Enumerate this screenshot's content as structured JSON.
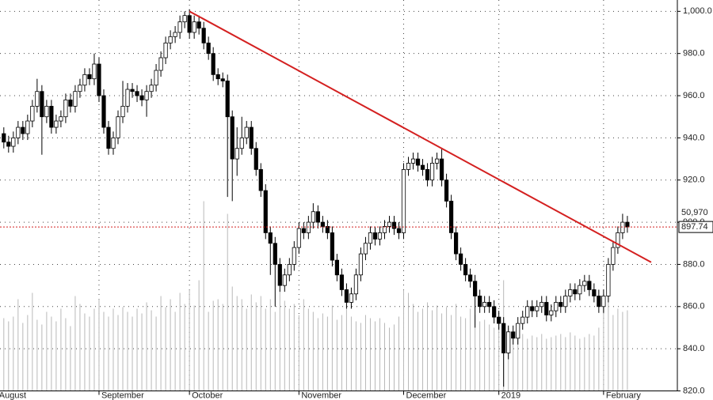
{
  "chart_data": {
    "type": "candlestick",
    "open": [
      942,
      938,
      936,
      940,
      945,
      942,
      948,
      955,
      962,
      950,
      955,
      945,
      948,
      950,
      958,
      955,
      962,
      965,
      970,
      968,
      975,
      960,
      945,
      935,
      940,
      950,
      955,
      963,
      962,
      960,
      958,
      962,
      965,
      972,
      978,
      985,
      988,
      990,
      995,
      998,
      990,
      995,
      992,
      985,
      980,
      970,
      968,
      967,
      950,
      930,
      935,
      940,
      945,
      935,
      925,
      915,
      895,
      890,
      880,
      870,
      875,
      880,
      888,
      897,
      895,
      900,
      905,
      900,
      898,
      895,
      882,
      875,
      868,
      862,
      866,
      875,
      885,
      890,
      895,
      892,
      895,
      898,
      900,
      897,
      895,
      925,
      928,
      930,
      927,
      925,
      920,
      928,
      930,
      920,
      910,
      895,
      885,
      880,
      875,
      872,
      865,
      860,
      862,
      860,
      855,
      852,
      838,
      848,
      845,
      852,
      855,
      860,
      858,
      860,
      862,
      856,
      858,
      862,
      860,
      865,
      868,
      866,
      870,
      872,
      868,
      865,
      860,
      865,
      880,
      888,
      895,
      900
    ],
    "high": [
      945,
      941,
      943,
      948,
      948,
      951,
      958,
      968,
      965,
      958,
      958,
      951,
      953,
      961,
      961,
      965,
      968,
      973,
      973,
      980,
      978,
      963,
      948,
      943,
      953,
      967,
      966,
      966,
      965,
      963,
      965,
      968,
      975,
      981,
      988,
      991,
      993,
      998,
      1000,
      1001,
      998,
      998,
      995,
      988,
      983,
      973,
      971,
      970,
      953,
      945,
      950,
      948,
      948,
      938,
      928,
      918,
      898,
      893,
      883,
      878,
      883,
      891,
      900,
      900,
      903,
      909,
      908,
      903,
      901,
      898,
      885,
      878,
      871,
      869,
      878,
      888,
      893,
      898,
      898,
      898,
      901,
      903,
      903,
      900,
      928,
      931,
      933,
      933,
      930,
      928,
      931,
      933,
      935,
      923,
      913,
      898,
      888,
      883,
      878,
      875,
      868,
      865,
      865,
      863,
      858,
      855,
      851,
      851,
      855,
      858,
      863,
      863,
      863,
      865,
      865,
      861,
      865,
      865,
      868,
      871,
      871,
      873,
      875,
      875,
      871,
      868,
      868,
      883,
      891,
      898,
      904,
      903
    ],
    "low": [
      935,
      933,
      933,
      937,
      939,
      939,
      945,
      952,
      932,
      947,
      942,
      942,
      945,
      947,
      952,
      952,
      959,
      962,
      965,
      965,
      957,
      942,
      932,
      932,
      937,
      947,
      952,
      959,
      957,
      955,
      950,
      959,
      962,
      969,
      975,
      982,
      985,
      987,
      992,
      987,
      987,
      989,
      982,
      977,
      967,
      965,
      964,
      912,
      910,
      922,
      932,
      937,
      932,
      922,
      912,
      892,
      875,
      860,
      867,
      867,
      872,
      877,
      885,
      892,
      892,
      897,
      897,
      895,
      892,
      879,
      872,
      865,
      859,
      859,
      863,
      872,
      882,
      887,
      889,
      889,
      892,
      895,
      894,
      892,
      892,
      922,
      925,
      924,
      922,
      917,
      917,
      925,
      917,
      907,
      892,
      882,
      877,
      872,
      869,
      850,
      857,
      857,
      857,
      852,
      849,
      822,
      835,
      842,
      842,
      849,
      852,
      855,
      855,
      857,
      853,
      853,
      855,
      857,
      857,
      862,
      863,
      863,
      867,
      865,
      862,
      857,
      857,
      862,
      877,
      885,
      892,
      895
    ],
    "close": [
      938,
      936,
      940,
      945,
      942,
      948,
      955,
      962,
      950,
      955,
      945,
      948,
      950,
      958,
      955,
      962,
      965,
      970,
      968,
      975,
      960,
      945,
      935,
      940,
      950,
      955,
      963,
      962,
      960,
      958,
      962,
      965,
      972,
      978,
      985,
      988,
      990,
      995,
      998,
      990,
      995,
      992,
      985,
      980,
      970,
      968,
      967,
      950,
      930,
      935,
      940,
      945,
      935,
      925,
      915,
      895,
      890,
      880,
      870,
      875,
      880,
      888,
      897,
      895,
      900,
      905,
      900,
      898,
      895,
      882,
      875,
      868,
      862,
      866,
      875,
      885,
      890,
      895,
      892,
      895,
      898,
      900,
      897,
      895,
      925,
      928,
      930,
      927,
      925,
      920,
      928,
      930,
      920,
      910,
      895,
      885,
      880,
      875,
      872,
      865,
      860,
      862,
      860,
      855,
      852,
      838,
      848,
      845,
      852,
      855,
      860,
      858,
      860,
      862,
      856,
      858,
      862,
      860,
      865,
      868,
      866,
      870,
      872,
      868,
      865,
      860,
      865,
      880,
      888,
      895,
      900,
      897.74
    ],
    "volume": [
      46000,
      44000,
      47000,
      58000,
      43000,
      48000,
      62000,
      45000,
      42000,
      50000,
      47000,
      44000,
      52000,
      46000,
      41000,
      60000,
      55000,
      49000,
      47000,
      52000,
      58000,
      50000,
      47000,
      52000,
      48000,
      53000,
      50000,
      47000,
      52000,
      49000,
      56000,
      51000,
      47000,
      60000,
      53000,
      58000,
      50000,
      62000,
      55000,
      64000,
      54000,
      70000,
      120000,
      50000,
      57000,
      58000,
      55000,
      112000,
      66000,
      60000,
      58000,
      52000,
      61000,
      56000,
      60000,
      52000,
      58000,
      50000,
      64000,
      57000,
      52000,
      55000,
      48000,
      58000,
      52000,
      50000,
      46000,
      49000,
      47000,
      54000,
      45000,
      48000,
      52000,
      47000,
      44000,
      43000,
      48000,
      46000,
      44000,
      46000,
      43000,
      40000,
      42000,
      47000,
      64000,
      62000,
      55000,
      50000,
      52000,
      56000,
      51000,
      54000,
      49000,
      53000,
      48000,
      55000,
      47000,
      46000,
      52000,
      48000,
      44000,
      45000,
      42000,
      40000,
      44000,
      70000,
      40000,
      38000,
      34000,
      36000,
      33000,
      35000,
      34000,
      36000,
      33000,
      34000,
      35000,
      36000,
      34000,
      37000,
      35000,
      33000,
      34000,
      36000,
      35000,
      40000,
      55000,
      62000,
      48000,
      52000,
      50000,
      50970
    ],
    "up_color": "#ffffff",
    "down_color": "#000000",
    "volume_color": "#b8b8b8",
    "trend_color": "#d42020",
    "last_volume_label": "50,970",
    "trendline": {
      "x": [
        39,
        136
      ],
      "y": [
        1000,
        881
      ]
    },
    "xlim": [
      -0.8,
      141.5
    ],
    "xticks": [
      {
        "value": -1.5,
        "label": "August"
      },
      {
        "value": 20,
        "label": "September"
      },
      {
        "value": 39,
        "label": "October"
      },
      {
        "value": 62,
        "label": "November"
      },
      {
        "value": 84,
        "label": "December"
      },
      {
        "value": 104,
        "label": "2019"
      },
      {
        "value": 126,
        "label": "February"
      }
    ],
    "ylim": [
      820,
      1002
    ],
    "yticks": [
      {
        "value": 820,
        "label": "820.0"
      },
      {
        "value": 840,
        "label": "840.0"
      },
      {
        "value": 860,
        "label": "860.0"
      },
      {
        "value": 880,
        "label": "880.0"
      },
      {
        "value": 900,
        "label": "900.0"
      },
      {
        "value": 920,
        "label": "920.0"
      },
      {
        "value": 940,
        "label": "940.0"
      },
      {
        "value": 960,
        "label": "960.0"
      },
      {
        "value": 980,
        "label": "980.0"
      },
      {
        "value": 1000,
        "label": "1,000.0"
      }
    ],
    "vlim": [
      0,
      120000
    ],
    "grid": true
  }
}
